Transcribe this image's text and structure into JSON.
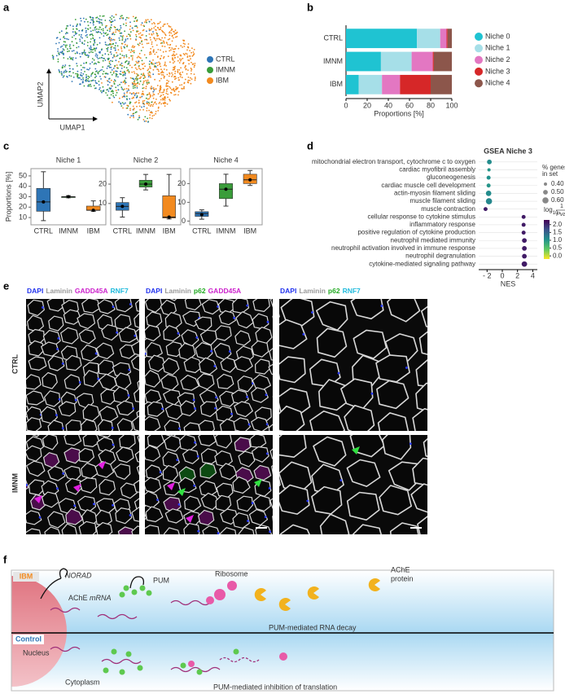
{
  "panel_labels": [
    "a",
    "b",
    "c",
    "d",
    "e",
    "f"
  ],
  "umap": {
    "x_label": "UMAP1",
    "y_label": "UMAP2",
    "legend": [
      {
        "name": "CTRL",
        "color": "#2e75b6"
      },
      {
        "name": "IMNM",
        "color": "#3a9d3a"
      },
      {
        "name": "IBM",
        "color": "#f28a1f"
      }
    ]
  },
  "chart_data": [
    {
      "type": "stacked-hbar",
      "categories": [
        "CTRL",
        "IMNM",
        "IBM"
      ],
      "x_label": "Proportions [%]",
      "xlim": [
        0,
        100
      ],
      "xticks": [
        0,
        20,
        40,
        60,
        80,
        100
      ],
      "legend": "right",
      "series": [
        {
          "name": "Niche 0",
          "color": "#1fc3d2",
          "values": [
            67,
            33,
            12
          ]
        },
        {
          "name": "Niche 1",
          "color": "#a6dfe8",
          "values": [
            22,
            29,
            22
          ]
        },
        {
          "name": "Niche 2",
          "color": "#e377c2",
          "values": [
            6,
            20,
            17
          ]
        },
        {
          "name": "Niche 3",
          "color": "#d62728",
          "values": [
            1,
            1,
            29
          ]
        },
        {
          "name": "Niche 4",
          "color": "#8c564b",
          "values": [
            4,
            17,
            20
          ]
        }
      ]
    },
    {
      "type": "box",
      "title": "Niche 1",
      "y_label": "Proportions [%]",
      "categories": [
        "CTRL",
        "IMNM",
        "IBM"
      ],
      "colors": [
        "#2e75b6",
        "#3a9d3a",
        "#f28a1f"
      ],
      "ylim": [
        3,
        57
      ],
      "yticks": [
        10,
        20,
        30,
        40,
        50
      ],
      "boxes": [
        {
          "min": 7,
          "q1": 16,
          "median": 25,
          "q3": 38,
          "max": 54,
          "mean": 25
        },
        {
          "min": 29,
          "q1": 29.5,
          "median": 30,
          "q3": 30,
          "max": 31,
          "mean": 30
        },
        {
          "min": 16,
          "q1": 17,
          "median": 17,
          "q3": 21,
          "max": 26,
          "mean": 17
        }
      ]
    },
    {
      "type": "box",
      "title": "Niche 2",
      "categories": [
        "CTRL",
        "IMNM",
        "IBM"
      ],
      "colors": [
        "#2e75b6",
        "#3a9d3a",
        "#f28a1f"
      ],
      "ylim": [
        -1,
        28
      ],
      "yticks": [
        10,
        20
      ],
      "boxes": [
        {
          "min": 3,
          "q1": 6.5,
          "median": 8.5,
          "q3": 10.5,
          "max": 13,
          "mean": 8.5
        },
        {
          "min": 17,
          "q1": 18.5,
          "median": 20,
          "q3": 22,
          "max": 25,
          "mean": 20
        },
        {
          "min": 2,
          "q1": 2.5,
          "median": 3,
          "q3": 14,
          "max": 25,
          "mean": 3
        }
      ]
    },
    {
      "type": "box",
      "title": "Niche 4",
      "categories": [
        "CTRL",
        "IMNM",
        "IBM"
      ],
      "colors": [
        "#2e75b6",
        "#3a9d3a",
        "#f28a1f"
      ],
      "ylim": [
        -2,
        28
      ],
      "yticks": [
        0,
        10,
        20
      ],
      "boxes": [
        {
          "min": 1,
          "q1": 2.5,
          "median": 4,
          "q3": 5,
          "max": 6,
          "mean": 3.5
        },
        {
          "min": 8,
          "q1": 12,
          "median": 17,
          "q3": 20,
          "max": 25,
          "mean": 17
        },
        {
          "min": 19,
          "q1": 20,
          "median": 22,
          "q3": 25,
          "max": 27,
          "mean": 22
        }
      ]
    },
    {
      "type": "dot",
      "title": "GSEA Niche 3",
      "x_label": "NES",
      "xlim": [
        -3.1,
        4.6
      ],
      "xticks": [
        {
          "value": -2,
          "label": "- 2"
        },
        0,
        2,
        4
      ],
      "grid": true,
      "categories": [
        "mitochondrial electron transport, cytochrome c to oxygen",
        "cardiac myofibril assembly",
        "gluconeogenesis",
        "cardiac muscle cell development",
        "actin-myosin filament sliding",
        "muscle filament sliding",
        "muscle contraction",
        "cellular response to cytokine stimulus",
        "inflammatory response",
        "positive regulation of cytokine production",
        "neutrophil mediated immunity",
        "neutrophil activation involved in immune response",
        "neutrophil degranulation",
        "cytokine-mediated signaling pathway"
      ],
      "values": [
        -1.7,
        -1.75,
        -1.8,
        -1.8,
        -1.8,
        -1.75,
        -2.2,
        2.8,
        2.8,
        2.8,
        2.9,
        2.9,
        2.9,
        2.9
      ],
      "sizes": [
        0.5,
        0.4,
        0.45,
        0.45,
        0.55,
        0.6,
        0.45,
        0.45,
        0.45,
        0.45,
        0.5,
        0.5,
        0.5,
        0.55
      ],
      "color_values": [
        1.1,
        1.0,
        1.05,
        1.0,
        1.1,
        1.15,
        2.1,
        2.1,
        2.1,
        2.1,
        2.1,
        2.1,
        2.1,
        2.1
      ],
      "size_title": [
        "% genes",
        "in set"
      ],
      "size_ticks": [
        {
          "value": 0.4,
          "label": "0.40"
        },
        {
          "value": 0.5,
          "label": "0.50"
        },
        {
          "value": 0.6,
          "label": "0.60"
        }
      ],
      "colorbar_title": {
        "log": "log",
        "base": "10",
        "numerator": "1",
        "denominator": "Pval"
      },
      "clim": [
        -0.2,
        2.3
      ],
      "colorbar_ticks": [
        {
          "value": 0,
          "label": "0.0"
        },
        {
          "value": 0.5,
          "label": "0.5"
        },
        {
          "value": 1,
          "label": "1.0"
        },
        {
          "value": 1.5,
          "label": "1.5"
        },
        {
          "value": 2,
          "label": "2.0"
        }
      ]
    }
  ],
  "micrographs": {
    "headers": [
      [
        {
          "text": "DAPI",
          "color": "#2233ee"
        },
        {
          "text": "Laminin",
          "color": "#999999"
        },
        {
          "text": "GADD45A",
          "color": "#cc22cc"
        },
        {
          "text": "RNF7",
          "color": "#22bbdd"
        }
      ],
      [
        {
          "text": "DAPI",
          "color": "#2233ee"
        },
        {
          "text": "Laminin",
          "color": "#999999"
        },
        {
          "text": "p62",
          "color": "#22aa22"
        },
        {
          "text": "GADD45A",
          "color": "#cc22cc"
        }
      ],
      [
        {
          "text": "DAPI",
          "color": "#2233ee"
        },
        {
          "text": "Laminin",
          "color": "#999999"
        },
        {
          "text": "p62",
          "color": "#22aa22"
        },
        {
          "text": "RNF7",
          "color": "#22bbdd"
        }
      ]
    ],
    "row_labels": [
      "CTRL",
      "IMNM"
    ]
  },
  "schematic": {
    "ibm": "IBM",
    "norad": "NORAD",
    "ache": "AChE",
    "mrna": "mRNA",
    "pum": "PUM",
    "ribosome": "Ribosome",
    "protein_1": "AChE",
    "protein_2": "protein",
    "rna_decay": "PUM-mediated RNA decay",
    "control": "Control",
    "nucleus": "Nucleus",
    "cytoplasm": "Cytoplasm",
    "inhibition": "PUM-mediated inhibition of translation"
  }
}
